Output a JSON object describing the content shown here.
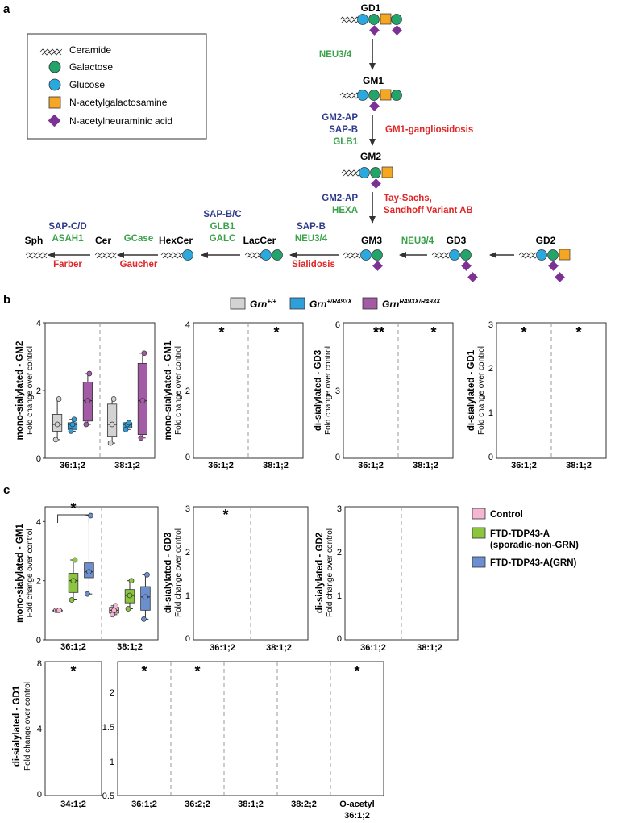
{
  "panel_labels": {
    "a": "a",
    "b": "b",
    "c": "c"
  },
  "legend_a": [
    {
      "shape": "ceramide",
      "label": "Ceramide"
    },
    {
      "shape": "circle",
      "color": "#22a46b",
      "label": "Galactose"
    },
    {
      "shape": "circle",
      "color": "#2aa9df",
      "label": "Glucose"
    },
    {
      "shape": "square",
      "color": "#f5a623",
      "label": "N-acetylgalactosamine"
    },
    {
      "shape": "diamond",
      "color": "#7b3294",
      "label": "N-acetylneuraminic acid"
    }
  ],
  "pathway": {
    "GD1": "GD1",
    "GM1": "GM1",
    "GM2": "GM2",
    "GM3": "GM3",
    "GD3": "GD3",
    "GD2": "GD2",
    "LacCer": "LacCer",
    "HexCer": "HexCer",
    "Cer": "Cer",
    "Sph": "Sph",
    "e_gd1_gm1": "NEU3/4",
    "e_gm1_gm2_a": "GM2-AP",
    "e_gm1_gm2_b": "SAP-B",
    "e_gm1_gm2_c": "GLB1",
    "d_gm1": "GM1-gangliosidosis",
    "e_gm2_gm3_a": "GM2-AP",
    "e_gm2_gm3_b": "HEXA",
    "d_gm2_a": "Tay-Sachs,",
    "d_gm2_b": "Sandhoff Variant AB",
    "e_gd3_gm3": "NEU3/4",
    "e_gm3_lac_a": "SAP-B",
    "e_gm3_lac_b": "NEU3/4",
    "d_gm3": "Sialidosis",
    "e_lac_hex_a": "SAP-B/C",
    "e_lac_hex_b": "GLB1",
    "e_lac_hex_c": "GALC",
    "e_hex_cer": "GCase",
    "d_hex": "Gaucher",
    "e_cer_sph_a": "SAP-C/D",
    "e_cer_sph_b": "ASAH1",
    "d_cer": "Farber"
  },
  "legend_b": [
    {
      "label": "Grn",
      "sup": "+/+",
      "color": "#d3d3d3"
    },
    {
      "label": "Grn",
      "sup": "+/R493X",
      "color": "#2e9fd8"
    },
    {
      "label": "Grn",
      "sup": "R493X/R493X",
      "color": "#a45ba6"
    }
  ],
  "legend_c": [
    {
      "label": "Control",
      "color": "#f4b6d2"
    },
    {
      "label": "FTD-TDP43-A",
      "label2": "(sporadic-non-GRN)",
      "color": "#8cc63f"
    },
    {
      "label": "FTD-TDP43-A(GRN)",
      "color": "#6c8fd1"
    }
  ],
  "y_axis_common": "Fold change over control",
  "chart_data": [
    {
      "type": "box",
      "panel": "b",
      "title": "mono-sialylated - GM2",
      "ylabel": "Fold change over control",
      "ylim": [
        0,
        4
      ],
      "yticks": [
        0,
        2,
        4
      ],
      "categories": [
        "36:1;2",
        "38:1;2"
      ],
      "series_colors": [
        "#d3d3d3",
        "#2e9fd8",
        "#a45ba6"
      ],
      "groups": [
        [
          {
            "min": 0.55,
            "q1": 0.8,
            "median": 1.0,
            "q3": 1.3,
            "max": 1.75
          },
          {
            "min": 0.8,
            "q1": 0.85,
            "median": 1.0,
            "q3": 1.05,
            "max": 1.15
          },
          {
            "min": 1.0,
            "q1": 1.1,
            "median": 1.7,
            "q3": 2.25,
            "max": 2.5
          }
        ],
        [
          {
            "min": 0.45,
            "q1": 0.65,
            "median": 1.0,
            "q3": 1.6,
            "max": 1.75
          },
          {
            "min": 0.85,
            "q1": 0.9,
            "median": 1.0,
            "q3": 1.05,
            "max": 1.05
          },
          {
            "min": 0.6,
            "q1": 0.7,
            "median": 1.7,
            "q3": 2.8,
            "max": 3.1
          }
        ]
      ],
      "significance": []
    },
    {
      "type": "box",
      "panel": "c",
      "title": "mono-sialylated - GM1",
      "ylabel": "Fold change over control",
      "ylim": [
        0,
        4.5
      ],
      "yticks": [
        0,
        2,
        4
      ],
      "categories": [
        "36:1;2",
        "38:1;2"
      ],
      "series_colors": [
        "#f4b6d2",
        "#8cc63f",
        "#6c8fd1"
      ],
      "groups": [
        [
          {
            "min": 1.0,
            "q1": 1.0,
            "median": 1.0,
            "q3": 1.0,
            "max": 1.0
          },
          {
            "min": 1.35,
            "q1": 1.6,
            "median": 2.0,
            "q3": 2.25,
            "max": 2.7
          },
          {
            "min": 1.55,
            "q1": 2.1,
            "median": 2.3,
            "q3": 2.6,
            "max": 4.2
          }
        ],
        [
          {
            "min": 0.85,
            "q1": 0.9,
            "median": 1.0,
            "q3": 1.1,
            "max": 1.15
          },
          {
            "min": 1.05,
            "q1": 1.25,
            "median": 1.5,
            "q3": 1.7,
            "max": 2.0
          },
          {
            "min": 0.7,
            "q1": 1.0,
            "median": 1.45,
            "q3": 1.8,
            "max": 2.2
          }
        ]
      ],
      "significance": [
        {
          "category": 0,
          "from": 0,
          "to": 2,
          "label": "*"
        }
      ]
    }
  ],
  "other_panels": {
    "b2_title": "mono-sialylated - GM1",
    "b3_title": "di-sialylated - GD3",
    "b4_title": "di-sialylated - GD1",
    "c2_title": "di-sialylated - GD3",
    "c3_title": "di-sialylated - GD2",
    "c4_title": "di-sialylated - GD1",
    "b_cats": [
      "36:1;2",
      "38:1;2"
    ],
    "c4_cats": [
      "34:1;2",
      "36:1;2",
      "36:2;2",
      "38:1;2",
      "38:2;2",
      "O-acetyl",
      "36:1;2"
    ],
    "b2_ticks": [
      "4",
      "2",
      "0"
    ],
    "b3_ticks": [
      "6",
      "3",
      "0"
    ],
    "b4_ticks": [
      "3",
      "2",
      "1",
      "0"
    ],
    "c2_ticks": [
      "3",
      "2",
      "1",
      "0"
    ],
    "c3_ticks": [
      "3",
      "2",
      "1",
      "0"
    ],
    "c4_ticks": [
      "8",
      "4",
      "0"
    ],
    "c4b_ticks": [
      "2",
      "1.5",
      "1",
      "0.5"
    ],
    "star": "*",
    "star2": "**"
  }
}
